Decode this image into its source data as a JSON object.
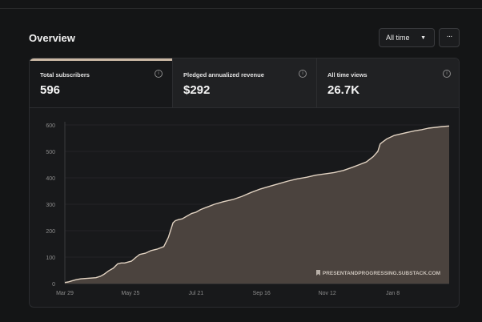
{
  "header": {
    "title": "Overview",
    "range_label": "All time",
    "range_caret": "▼",
    "more_label": "···"
  },
  "stats": [
    {
      "label": "Total subscribers",
      "value": "596",
      "info_icon": "info-icon"
    },
    {
      "label": "Pledged annualized revenue",
      "value": "$292",
      "info_icon": "info-icon"
    },
    {
      "label": "All time views",
      "value": "26.7K",
      "info_icon": "info-icon"
    }
  ],
  "colors": {
    "accent": "#cbb8a4",
    "line": "#e2d3c2",
    "area": "#4e4640"
  },
  "chart_data": {
    "type": "area",
    "title": "",
    "xlabel": "",
    "ylabel": "",
    "ylim": [
      0,
      600
    ],
    "yticks": [
      0,
      100,
      200,
      300,
      400,
      500,
      600
    ],
    "xticks": [
      {
        "label": "Mar 29",
        "day": 0
      },
      {
        "label": "May 25",
        "day": 57
      },
      {
        "label": "Jul 21",
        "day": 114
      },
      {
        "label": "Sep 16",
        "day": 171
      },
      {
        "label": "Nov 12",
        "day": 228
      },
      {
        "label": "Jan 8",
        "day": 285
      }
    ],
    "xmax": 334,
    "watermark": "PRESENTANDPROGRESSING.SUBSTACK.COM",
    "watermark_icon": "bookmark-icon",
    "series": [
      {
        "name": "Total subscribers",
        "x": [
          0,
          3,
          6,
          10,
          14,
          20,
          27,
          31,
          34,
          38,
          42,
          46,
          49,
          52,
          58,
          62,
          65,
          70,
          75,
          80,
          86,
          90,
          94,
          96,
          99,
          102,
          106,
          110,
          114,
          118,
          124,
          130,
          138,
          146,
          154,
          162,
          170,
          178,
          186,
          194,
          202,
          210,
          218,
          226,
          234,
          242,
          250,
          256,
          262,
          268,
          272,
          274,
          276,
          280,
          286,
          292,
          298,
          304,
          310,
          316,
          322,
          328,
          334
        ],
        "y": [
          4,
          6,
          10,
          15,
          18,
          20,
          22,
          28,
          35,
          48,
          58,
          75,
          78,
          78,
          85,
          100,
          110,
          115,
          125,
          130,
          140,
          175,
          230,
          238,
          242,
          245,
          255,
          265,
          270,
          280,
          290,
          300,
          310,
          318,
          330,
          345,
          358,
          368,
          378,
          388,
          396,
          402,
          410,
          415,
          420,
          428,
          440,
          450,
          460,
          480,
          500,
          528,
          535,
          548,
          560,
          566,
          572,
          578,
          582,
          588,
          591,
          594,
          596
        ]
      }
    ]
  }
}
